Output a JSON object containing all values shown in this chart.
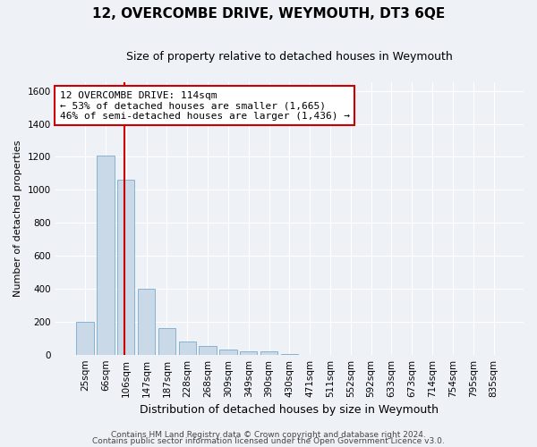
{
  "title": "12, OVERCOMBE DRIVE, WEYMOUTH, DT3 6QE",
  "subtitle": "Size of property relative to detached houses in Weymouth",
  "xlabel": "Distribution of detached houses by size in Weymouth",
  "ylabel": "Number of detached properties",
  "categories": [
    "25sqm",
    "66sqm",
    "106sqm",
    "147sqm",
    "187sqm",
    "228sqm",
    "268sqm",
    "309sqm",
    "349sqm",
    "390sqm",
    "430sqm",
    "471sqm",
    "511sqm",
    "552sqm",
    "592sqm",
    "633sqm",
    "673sqm",
    "714sqm",
    "754sqm",
    "795sqm",
    "835sqm"
  ],
  "values": [
    200,
    1210,
    1060,
    400,
    160,
    80,
    50,
    30,
    20,
    20,
    5,
    0,
    0,
    0,
    0,
    0,
    0,
    0,
    0,
    0,
    0
  ],
  "bar_color": "#c9d9e8",
  "bar_edge_color": "#7aaace",
  "vline_color": "#cc0000",
  "vline_x_index": 2,
  "annotation_text": "12 OVERCOMBE DRIVE: 114sqm\n← 53% of detached houses are smaller (1,665)\n46% of semi-detached houses are larger (1,436) →",
  "annotation_box_facecolor": "#ffffff",
  "annotation_box_edgecolor": "#cc0000",
  "ylim": [
    0,
    1650
  ],
  "yticks": [
    0,
    200,
    400,
    600,
    800,
    1000,
    1200,
    1400,
    1600
  ],
  "footer1": "Contains HM Land Registry data © Crown copyright and database right 2024.",
  "footer2": "Contains public sector information licensed under the Open Government Licence v3.0.",
  "bg_color": "#eef2f7",
  "plot_bg_color": "#eef2f7",
  "title_fontsize": 11,
  "subtitle_fontsize": 9,
  "ylabel_fontsize": 8,
  "xlabel_fontsize": 9,
  "tick_fontsize": 7.5,
  "annotation_fontsize": 8,
  "footer_fontsize": 6.5
}
